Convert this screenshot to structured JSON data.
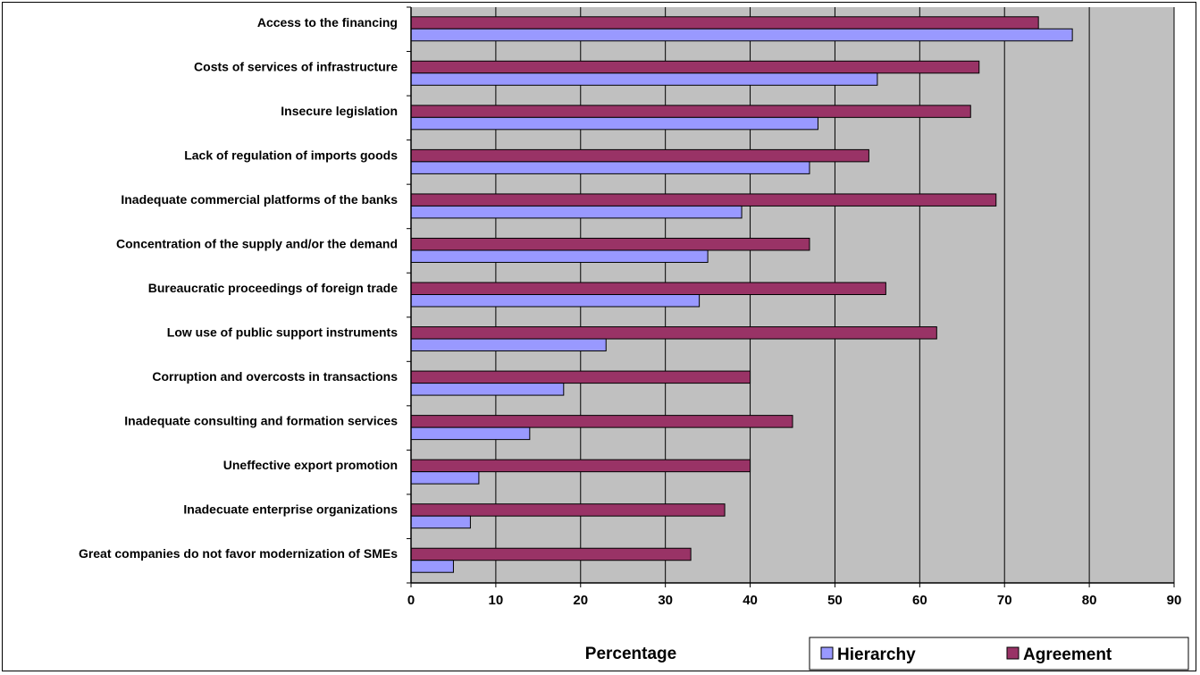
{
  "chart_data": {
    "type": "bar",
    "orientation": "horizontal",
    "categories": [
      "Access to the financing",
      "Costs of services of infrastructure",
      "Insecure legislation",
      "Lack of regulation of imports goods",
      "Inadequate commercial platforms of the  banks",
      "Concentration of the supply and/or the demand",
      "Bureaucratic proceedings of foreign trade",
      "Low use of public support instruments",
      "Corruption and overcosts in transactions",
      "Inadequate consulting and formation services",
      "Uneffective export promotion",
      "Inadecuate enterprise organizations",
      "Great companies do not favor modernization of SMEs"
    ],
    "series": [
      {
        "name": "Hierarchy",
        "color": "#9999ff",
        "values": [
          78,
          55,
          48,
          47,
          39,
          35,
          34,
          23,
          18,
          14,
          8,
          7,
          5
        ]
      },
      {
        "name": "Agreement",
        "color": "#993366",
        "values": [
          74,
          67,
          66,
          54,
          69,
          47,
          56,
          62,
          40,
          45,
          40,
          37,
          33
        ]
      }
    ],
    "xlabel": "Percentage",
    "xlim": [
      0,
      90
    ],
    "xticks": [
      0,
      10,
      20,
      30,
      40,
      50,
      60,
      70,
      80,
      90
    ],
    "grid": "vertical",
    "plot_background": "#c0c0c0",
    "legend_position": "bottom-right"
  }
}
